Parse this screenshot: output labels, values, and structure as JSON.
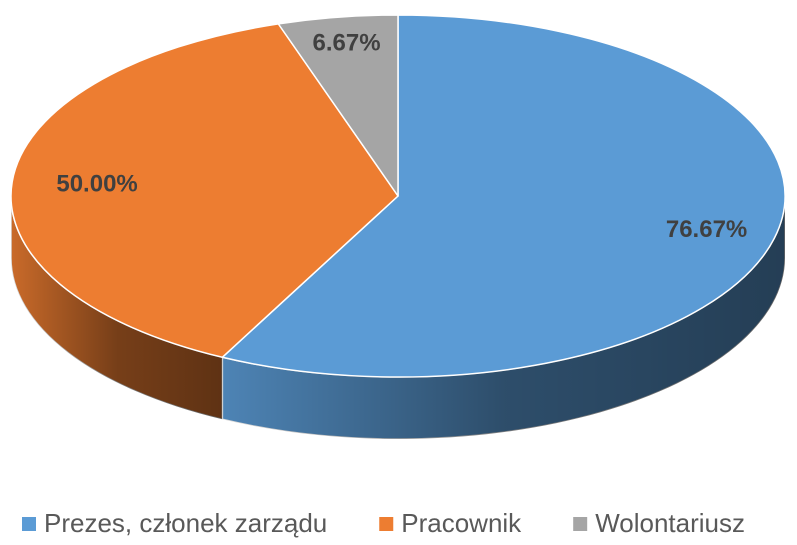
{
  "chart_data": {
    "type": "pie",
    "style": "3d",
    "categories": [
      "Prezes, członek zarządu",
      "Pracownik",
      "Wolontariusz"
    ],
    "values": [
      76.67,
      50.0,
      6.67
    ],
    "value_labels": [
      "76.67%",
      "50.00%",
      "6.67%"
    ],
    "colors": [
      "#5b9bd5",
      "#ed7d31",
      "#a5a5a5"
    ],
    "legend": "bottom"
  }
}
